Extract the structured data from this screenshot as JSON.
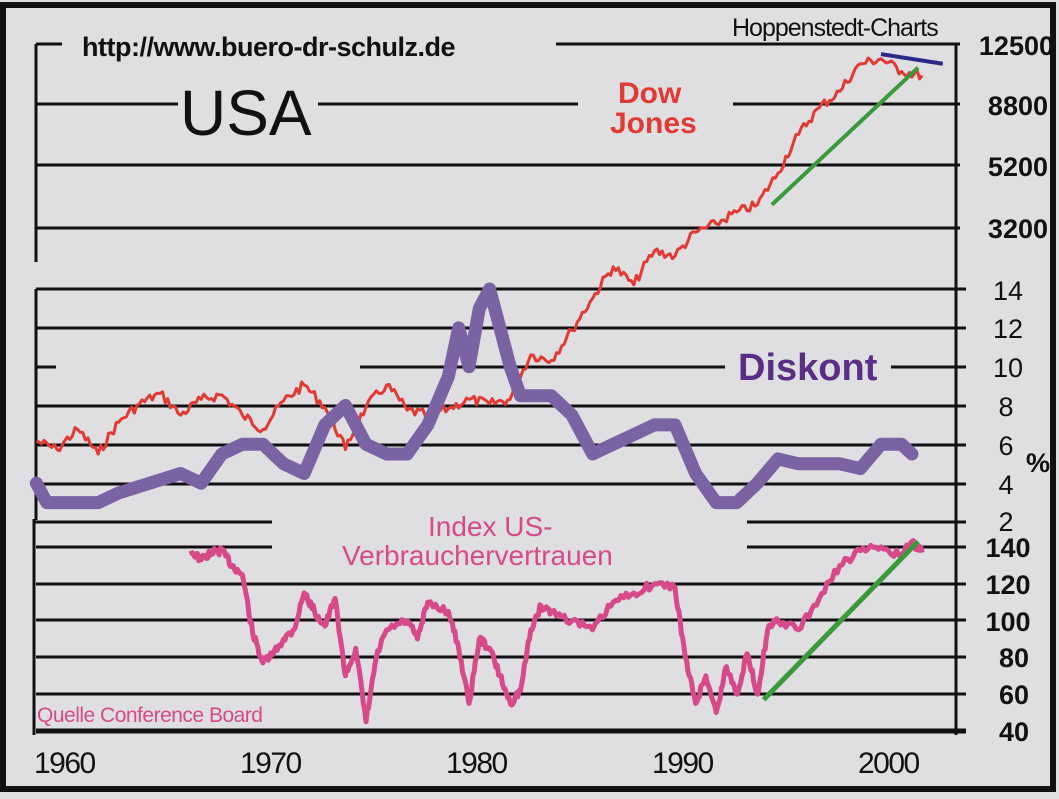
{
  "header": {
    "url": "http://www.buero-dr-schulz.de",
    "country": "USA",
    "publisher": "Hoppenstedt-Charts"
  },
  "labels": {
    "dow_jones_line1": "Dow",
    "dow_jones_line2": "Jones",
    "diskont": "Diskont",
    "percent_unit": "%",
    "index_line1": "Index US-",
    "index_line2": "Verbrauchervertrauen",
    "source": "Quelle Conference Board"
  },
  "colors": {
    "background": "#dfdfe1",
    "grid": "#111111",
    "dow_jones": "#e03a33",
    "diskont": "#7b62a3",
    "diskont_label": "#5a2e84",
    "consumer_confidence": "#d64a8a",
    "trend_up": "#3a9a3a",
    "trend_down": "#2a2a8a"
  },
  "chart_data": [
    {
      "type": "line",
      "title": "Dow Jones",
      "scale": "log",
      "xlabel": "",
      "ylabel": "",
      "y_ticks": [
        3200,
        5200,
        8800,
        12500
      ],
      "ylim": [
        500,
        12500
      ],
      "x": [
        1959,
        1960,
        1961,
        1962,
        1963,
        1964,
        1965,
        1966,
        1967,
        1968,
        1969,
        1970,
        1971,
        1972,
        1973,
        1974,
        1975,
        1976,
        1977,
        1978,
        1979,
        1980,
        1981,
        1982,
        1983,
        1984,
        1985,
        1986,
        1987,
        1988,
        1989,
        1990,
        1991,
        1992,
        1993,
        1994,
        1995,
        1996,
        1997,
        1998,
        1999,
        2000,
        2001,
        2002
      ],
      "values": [
        660,
        620,
        720,
        600,
        760,
        870,
        940,
        800,
        900,
        930,
        800,
        720,
        890,
        1000,
        850,
        620,
        850,
        1000,
        830,
        800,
        840,
        900,
        870,
        900,
        1250,
        1200,
        1500,
        1900,
        2400,
        2100,
        2700,
        2600,
        3100,
        3300,
        3600,
        3800,
        4800,
        6400,
        7800,
        8800,
        10800,
        11200,
        10200,
        9900
      ],
      "trendlines": [
        {
          "name": "uptrend",
          "color": "green",
          "from": [
            1994.7,
            3800
          ],
          "to": [
            2001.8,
            10500
          ]
        },
        {
          "name": "downtrend",
          "color": "blue",
          "from": [
            2000.0,
            11600
          ],
          "to": [
            2003.0,
            10800
          ]
        }
      ]
    },
    {
      "type": "line",
      "title": "Diskont",
      "unit": "%",
      "y_ticks": [
        2,
        4,
        6,
        8,
        10,
        12,
        14
      ],
      "ylim": [
        2,
        14
      ],
      "x": [
        1959,
        1959.5,
        1960,
        1962,
        1963,
        1964.5,
        1966,
        1967,
        1968,
        1969,
        1970,
        1971,
        1972,
        1973,
        1974,
        1975,
        1976,
        1977,
        1978,
        1979,
        1979.5,
        1980,
        1980.5,
        1981,
        1981.5,
        1982,
        1982.5,
        1983,
        1984,
        1985,
        1986,
        1987,
        1988,
        1989,
        1990,
        1991,
        1992,
        1993,
        1994,
        1995,
        1996,
        1997,
        1998,
        1999,
        2000,
        2001,
        2001.5
      ],
      "values": [
        4,
        3,
        3,
        3,
        3.5,
        4,
        4.5,
        4,
        5.5,
        6,
        6,
        5,
        4.5,
        7,
        8,
        6,
        5.5,
        5.5,
        7,
        9.5,
        12,
        10,
        13,
        14,
        12,
        10,
        8.5,
        8.5,
        8.5,
        7.5,
        5.5,
        6,
        6.5,
        7,
        7,
        4.5,
        3,
        3,
        4,
        5.25,
        5,
        5,
        5,
        4.75,
        6,
        6,
        5.5
      ]
    },
    {
      "type": "line",
      "title": "Index US-Verbrauchervertrauen",
      "y_ticks": [
        40,
        60,
        80,
        100,
        120,
        140
      ],
      "ylim": [
        40,
        140
      ],
      "x": [
        1966.5,
        1967,
        1967.5,
        1968,
        1968.5,
        1969,
        1969.5,
        1970,
        1970.5,
        1971,
        1971.5,
        1972,
        1972.5,
        1973,
        1973.5,
        1974,
        1974.5,
        1975,
        1975.5,
        1976,
        1977,
        1977.5,
        1978,
        1979,
        1979.5,
        1980,
        1980.5,
        1981,
        1981.5,
        1982,
        1982.5,
        1983,
        1983.5,
        1984,
        1985,
        1986,
        1987,
        1988,
        1989,
        1990,
        1990.5,
        1991,
        1991.5,
        1992,
        1992.5,
        1993,
        1993.5,
        1994,
        1994.5,
        1995,
        1996,
        1997,
        1998,
        1999,
        2000,
        2001,
        2001.5,
        2002
      ],
      "values": [
        138,
        133,
        137,
        138,
        130,
        125,
        93,
        77,
        82,
        90,
        95,
        115,
        105,
        97,
        112,
        70,
        85,
        45,
        80,
        95,
        100,
        90,
        110,
        105,
        85,
        55,
        90,
        85,
        70,
        55,
        62,
        95,
        108,
        105,
        100,
        95,
        110,
        115,
        120,
        118,
        80,
        55,
        70,
        50,
        75,
        60,
        82,
        60,
        95,
        100,
        95,
        112,
        130,
        138,
        140,
        135,
        143,
        137
      ],
      "trendlines": [
        {
          "name": "uptrend",
          "color": "green",
          "from": [
            1994.3,
            57
          ],
          "to": [
            2001.8,
            143
          ]
        }
      ]
    }
  ],
  "x_axis": {
    "tick_labels": [
      "1960",
      "1970",
      "1980",
      "1990",
      "2000"
    ],
    "range": [
      1958.8,
      2002.6
    ]
  }
}
